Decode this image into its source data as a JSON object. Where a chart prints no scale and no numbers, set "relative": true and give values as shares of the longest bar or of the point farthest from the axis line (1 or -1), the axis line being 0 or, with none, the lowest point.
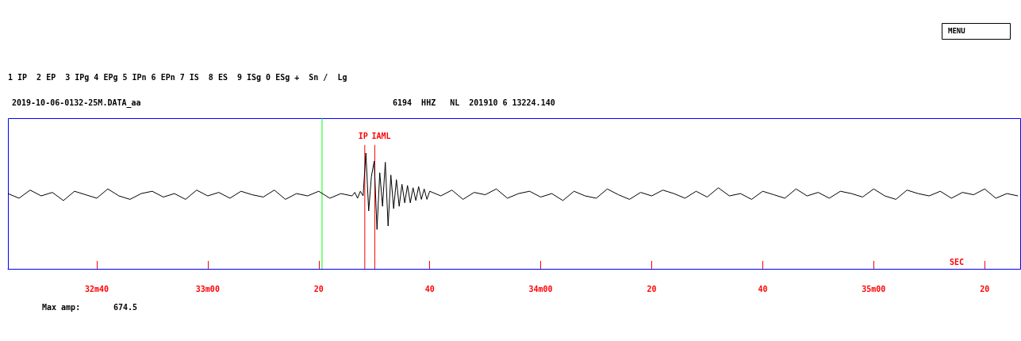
{
  "chart_data": {
    "type": "line",
    "relative": true,
    "title": "2019-10-06-0132-25M.DATA_aa",
    "subtitle": "6194  HHZ   NL  201910 6 13224.140",
    "xlabel": "SEC",
    "annotations": [
      "1 IP  2 EP  3 IPg 4 EPg 5 IPn 6 EPn 7 IS  8 ES  9 ISg 0 ESg +  Sn /  Lg",
      "MENU",
      "Max amp:",
      "674.5"
    ],
    "xlim": [
      "2019-10-06T01:32:24",
      "2019-10-06T01:35:26.4"
    ],
    "xticks": [
      {
        "value": "2019-10-06T01:32:40",
        "label": "32m40"
      },
      {
        "value": "2019-10-06T01:33:00",
        "label": "33m00"
      },
      {
        "value": "2019-10-06T01:33:20",
        "label": "20"
      },
      {
        "value": "2019-10-06T01:33:40",
        "label": "40"
      },
      {
        "value": "2019-10-06T01:34:00",
        "label": "34m00"
      },
      {
        "value": "2019-10-06T01:34:20",
        "label": "20"
      },
      {
        "value": "2019-10-06T01:34:40",
        "label": "40"
      },
      {
        "value": "2019-10-06T01:35:00",
        "label": "35m00"
      },
      {
        "value": "2019-10-06T01:35:20",
        "label": "20"
      }
    ],
    "grid": false,
    "marker": "none",
    "line_style": "solid",
    "ref_lines": [
      {
        "axis": "x",
        "value": "2019-10-06T01:33:20.6",
        "label": null,
        "color": "#00ff00"
      },
      {
        "axis": "x",
        "value": "2019-10-06T01:33:28.3",
        "label": "IP",
        "color": "#ff0000"
      },
      {
        "axis": "x",
        "value": "2019-10-06T01:33:30.1",
        "label": "IAML",
        "color": "#ff0000"
      }
    ],
    "series": [
      {
        "color": "#000000",
        "x": [
          "2019-10-06T01:32:24",
          "2019-10-06T01:32:26",
          "2019-10-06T01:32:28",
          "2019-10-06T01:32:30",
          "2019-10-06T01:32:32",
          "2019-10-06T01:32:34",
          "2019-10-06T01:32:36",
          "2019-10-06T01:32:38",
          "2019-10-06T01:32:40",
          "2019-10-06T01:32:42",
          "2019-10-06T01:32:44",
          "2019-10-06T01:32:46",
          "2019-10-06T01:32:48",
          "2019-10-06T01:32:50",
          "2019-10-06T01:32:52",
          "2019-10-06T01:32:54",
          "2019-10-06T01:32:56",
          "2019-10-06T01:32:58",
          "2019-10-06T01:33:00",
          "2019-10-06T01:33:02",
          "2019-10-06T01:33:04",
          "2019-10-06T01:33:06",
          "2019-10-06T01:33:08",
          "2019-10-06T01:33:10",
          "2019-10-06T01:33:12",
          "2019-10-06T01:33:14",
          "2019-10-06T01:33:16",
          "2019-10-06T01:33:18",
          "2019-10-06T01:33:20",
          "2019-10-06T01:33:22",
          "2019-10-06T01:33:24",
          "2019-10-06T01:33:26",
          "2019-10-06T01:33:26.5",
          "2019-10-06T01:33:27",
          "2019-10-06T01:33:27.5",
          "2019-10-06T01:33:28",
          "2019-10-06T01:33:28.5",
          "2019-10-06T01:33:29",
          "2019-10-06T01:33:29.5",
          "2019-10-06T01:33:30",
          "2019-10-06T01:33:30.5",
          "2019-10-06T01:33:31",
          "2019-10-06T01:33:31.5",
          "2019-10-06T01:33:32",
          "2019-10-06T01:33:32.5",
          "2019-10-06T01:33:33",
          "2019-10-06T01:33:33.5",
          "2019-10-06T01:33:34",
          "2019-10-06T01:33:34.5",
          "2019-10-06T01:33:35",
          "2019-10-06T01:33:35.5",
          "2019-10-06T01:33:36",
          "2019-10-06T01:33:36.5",
          "2019-10-06T01:33:37",
          "2019-10-06T01:33:37.5",
          "2019-10-06T01:33:38",
          "2019-10-06T01:33:38.5",
          "2019-10-06T01:33:39",
          "2019-10-06T01:33:39.5",
          "2019-10-06T01:33:40",
          "2019-10-06T01:33:42",
          "2019-10-06T01:33:44",
          "2019-10-06T01:33:46",
          "2019-10-06T01:33:48",
          "2019-10-06T01:33:50",
          "2019-10-06T01:33:52",
          "2019-10-06T01:33:54",
          "2019-10-06T01:33:56",
          "2019-10-06T01:33:58",
          "2019-10-06T01:34:00",
          "2019-10-06T01:34:02",
          "2019-10-06T01:34:04",
          "2019-10-06T01:34:06",
          "2019-10-06T01:34:08",
          "2019-10-06T01:34:10",
          "2019-10-06T01:34:12",
          "2019-10-06T01:34:14",
          "2019-10-06T01:34:16",
          "2019-10-06T01:34:18",
          "2019-10-06T01:34:20",
          "2019-10-06T01:34:22",
          "2019-10-06T01:34:24",
          "2019-10-06T01:34:26",
          "2019-10-06T01:34:28",
          "2019-10-06T01:34:30",
          "2019-10-06T01:34:32",
          "2019-10-06T01:34:34",
          "2019-10-06T01:34:36",
          "2019-10-06T01:34:38",
          "2019-10-06T01:34:40",
          "2019-10-06T01:34:42",
          "2019-10-06T01:34:44",
          "2019-10-06T01:34:46",
          "2019-10-06T01:34:48",
          "2019-10-06T01:34:50",
          "2019-10-06T01:34:52",
          "2019-10-06T01:34:54",
          "2019-10-06T01:34:56",
          "2019-10-06T01:34:58",
          "2019-10-06T01:35:00",
          "2019-10-06T01:35:02",
          "2019-10-06T01:35:04",
          "2019-10-06T01:35:06",
          "2019-10-06T01:35:08",
          "2019-10-06T01:35:10",
          "2019-10-06T01:35:12",
          "2019-10-06T01:35:14",
          "2019-10-06T01:35:16",
          "2019-10-06T01:35:18",
          "2019-10-06T01:35:20",
          "2019-10-06T01:35:22",
          "2019-10-06T01:35:24",
          "2019-10-06T01:35:26"
        ],
        "values": [
          0.65,
          0.61,
          0.68,
          0.63,
          0.66,
          0.59,
          0.67,
          0.64,
          0.61,
          0.69,
          0.63,
          0.6,
          0.65,
          0.67,
          0.62,
          0.65,
          0.6,
          0.68,
          0.63,
          0.66,
          0.61,
          0.67,
          0.64,
          0.62,
          0.68,
          0.6,
          0.65,
          0.63,
          0.67,
          0.61,
          0.65,
          0.63,
          0.66,
          0.61,
          0.67,
          0.63,
          1.0,
          0.5,
          0.8,
          0.93,
          0.34,
          0.83,
          0.54,
          0.92,
          0.37,
          0.81,
          0.52,
          0.77,
          0.54,
          0.73,
          0.57,
          0.72,
          0.57,
          0.7,
          0.59,
          0.71,
          0.6,
          0.69,
          0.6,
          0.67,
          0.63,
          0.68,
          0.6,
          0.66,
          0.64,
          0.69,
          0.61,
          0.65,
          0.67,
          0.62,
          0.65,
          0.59,
          0.67,
          0.63,
          0.61,
          0.69,
          0.64,
          0.6,
          0.66,
          0.63,
          0.68,
          0.65,
          0.61,
          0.67,
          0.62,
          0.7,
          0.63,
          0.65,
          0.6,
          0.67,
          0.64,
          0.61,
          0.69,
          0.63,
          0.66,
          0.61,
          0.67,
          0.65,
          0.62,
          0.69,
          0.63,
          0.6,
          0.68,
          0.65,
          0.63,
          0.67,
          0.61,
          0.66,
          0.64,
          0.69,
          0.61,
          0.65,
          0.63
        ]
      }
    ]
  }
}
